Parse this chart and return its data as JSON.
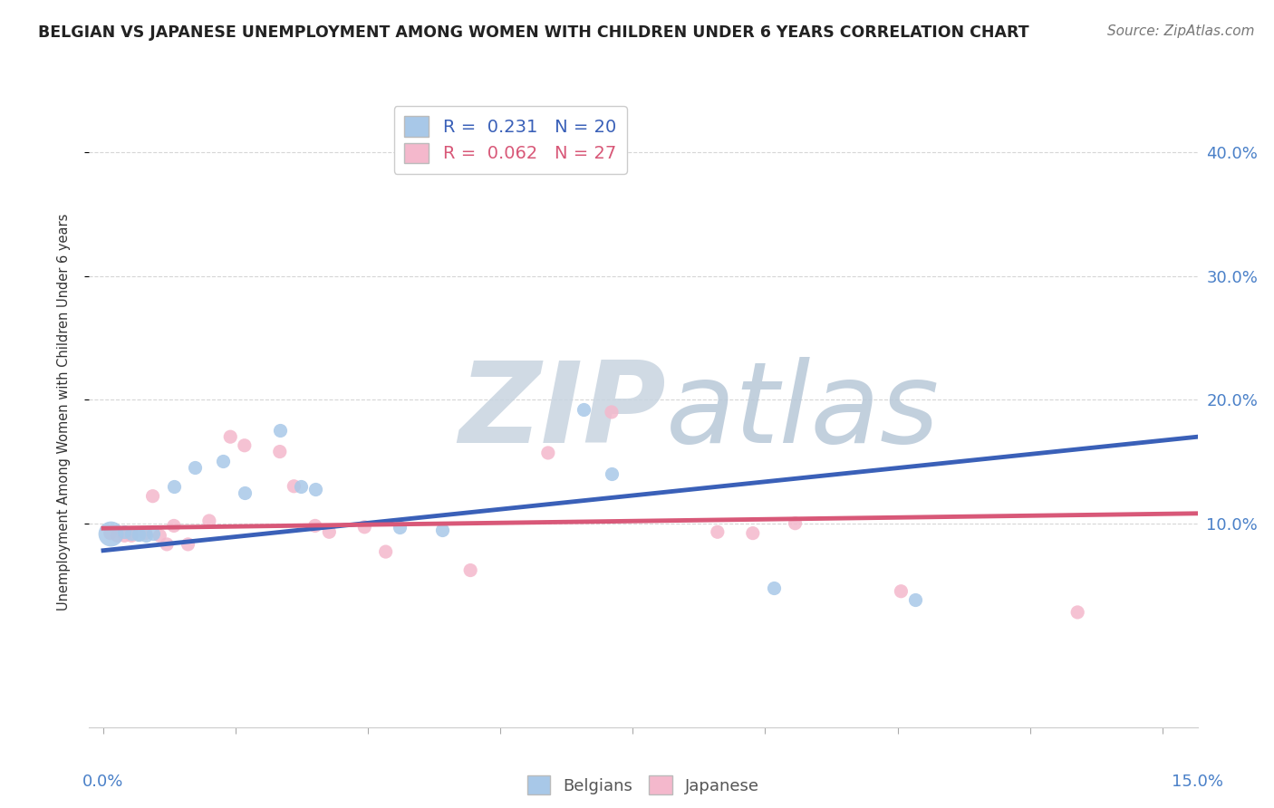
{
  "title": "BELGIAN VS JAPANESE UNEMPLOYMENT AMONG WOMEN WITH CHILDREN UNDER 6 YEARS CORRELATION CHART",
  "source": "Source: ZipAtlas.com",
  "ylabel": "Unemployment Among Women with Children Under 6 years",
  "ytick_labels": [
    "10.0%",
    "20.0%",
    "30.0%",
    "40.0%"
  ],
  "ytick_values": [
    0.1,
    0.2,
    0.3,
    0.4
  ],
  "xlim": [
    -0.002,
    0.155
  ],
  "ylim": [
    -0.065,
    0.445
  ],
  "belgian_R": 0.231,
  "belgian_N": 20,
  "japanese_R": 0.062,
  "japanese_N": 27,
  "belgian_color": "#a8c8e8",
  "japanese_color": "#f4b8cc",
  "belgian_line_color": "#3a60b8",
  "japanese_line_color": "#d85878",
  "watermark_zip": "ZIP",
  "watermark_atlas": "atlas",
  "watermark_color_zip": "#c8d4e0",
  "watermark_color_atlas": "#b8c8d8",
  "belgians_x": [
    0.001,
    0.003,
    0.004,
    0.005,
    0.005,
    0.006,
    0.007,
    0.01,
    0.013,
    0.017,
    0.02,
    0.025,
    0.028,
    0.03,
    0.042,
    0.048,
    0.068,
    0.072,
    0.095,
    0.115
  ],
  "belgians_y": [
    0.092,
    0.093,
    0.092,
    0.091,
    0.091,
    0.09,
    0.092,
    0.13,
    0.145,
    0.15,
    0.125,
    0.175,
    0.13,
    0.128,
    0.097,
    0.095,
    0.192,
    0.14,
    0.048,
    0.038
  ],
  "belgians_size": [
    400,
    120,
    120,
    120,
    120,
    120,
    120,
    120,
    120,
    120,
    120,
    120,
    120,
    120,
    120,
    120,
    120,
    120,
    120,
    120
  ],
  "japanese_x": [
    0.001,
    0.002,
    0.003,
    0.004,
    0.006,
    0.007,
    0.008,
    0.009,
    0.01,
    0.012,
    0.015,
    0.018,
    0.02,
    0.025,
    0.027,
    0.03,
    0.032,
    0.037,
    0.04,
    0.052,
    0.063,
    0.072,
    0.087,
    0.092,
    0.098,
    0.113,
    0.138
  ],
  "japanese_y": [
    0.092,
    0.09,
    0.09,
    0.09,
    0.092,
    0.122,
    0.09,
    0.083,
    0.098,
    0.083,
    0.102,
    0.17,
    0.163,
    0.158,
    0.13,
    0.098,
    0.093,
    0.097,
    0.077,
    0.062,
    0.157,
    0.19,
    0.093,
    0.092,
    0.1,
    0.045,
    0.028
  ],
  "japanese_size": [
    120,
    120,
    120,
    120,
    120,
    120,
    120,
    120,
    120,
    120,
    120,
    120,
    120,
    120,
    120,
    120,
    120,
    120,
    120,
    120,
    120,
    120,
    120,
    120,
    120,
    120,
    120
  ],
  "belgian_trend": [
    0.0,
    0.078,
    0.155,
    0.17
  ],
  "japanese_trend": [
    0.0,
    0.096,
    0.155,
    0.108
  ],
  "legend_belgian_label": "Belgians",
  "legend_japanese_label": "Japanese",
  "grid_color": "#cccccc",
  "bg_color": "#ffffff",
  "title_color": "#222222",
  "right_tick_color": "#4a80c8",
  "bottom_tick_color": "#4a80c8"
}
